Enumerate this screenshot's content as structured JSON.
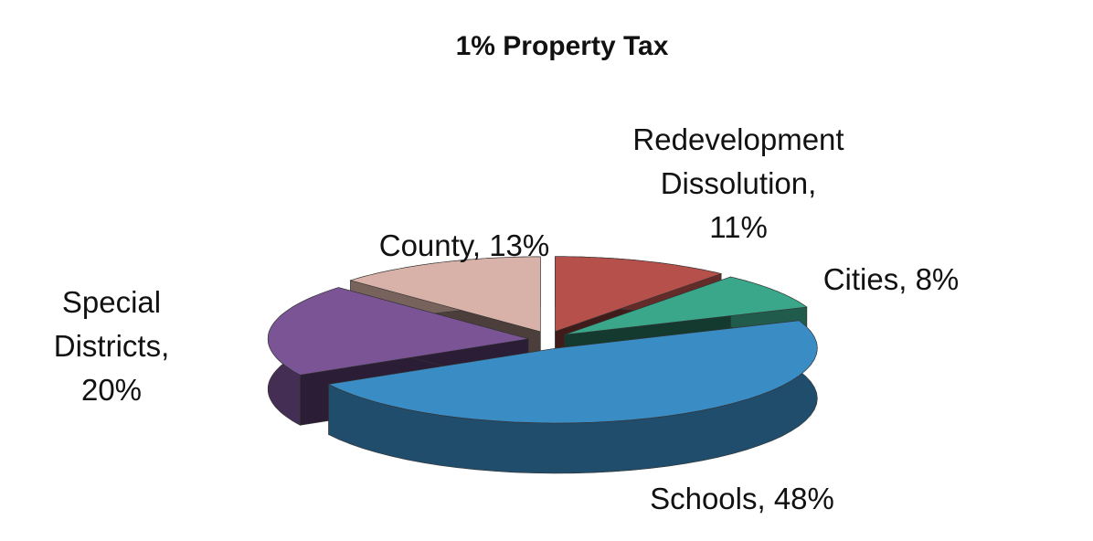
{
  "chart_data": {
    "type": "pie3d",
    "title": "1% Property Tax",
    "values": [
      11,
      8,
      48,
      20,
      13
    ],
    "value_labels": [
      [
        "Redevelopment",
        "Dissolution,",
        "11%"
      ],
      [
        "Cities, 8%"
      ],
      [
        "Schools, 48%"
      ],
      [
        "Special",
        "Districts,",
        "20%"
      ],
      [
        "County, 13%"
      ]
    ],
    "colors": [
      "#b5504a",
      "#3aa68a",
      "#3a8cc4",
      "#7b5496",
      "#d8b2a8"
    ]
  }
}
